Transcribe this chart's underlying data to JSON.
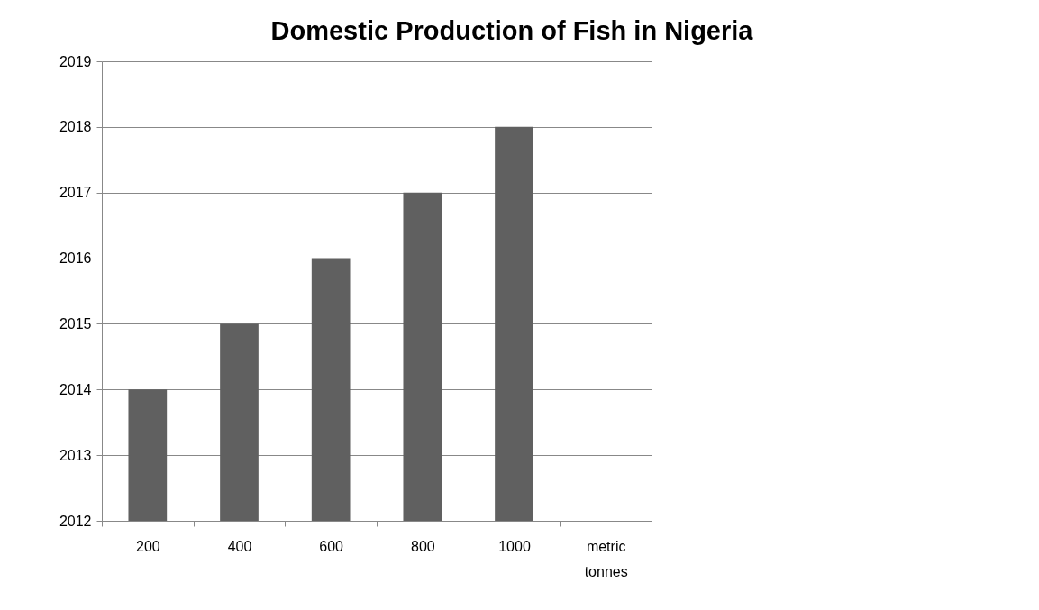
{
  "chart_data": {
    "type": "bar",
    "title": "Domestic Production of Fish in Nigeria",
    "categories": [
      "200",
      "400",
      "600",
      "800",
      "1000",
      "metric tonnes"
    ],
    "values": [
      2014,
      2015,
      2016,
      2017,
      2018,
      null
    ],
    "color": "#606060",
    "ylim": [
      2012,
      2019
    ],
    "yticks": [
      2012,
      2013,
      2014,
      2015,
      2016,
      2017,
      2018,
      2019
    ],
    "grid": "y"
  }
}
